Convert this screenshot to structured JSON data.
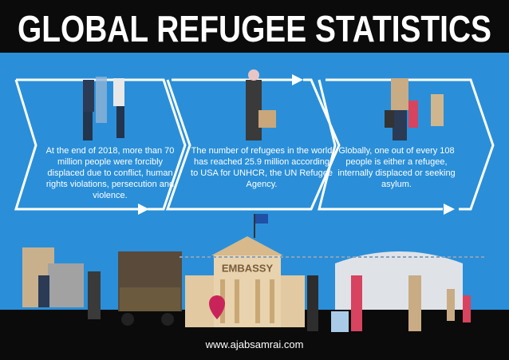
{
  "header": {
    "title": "GLOBAL REFUGEE STATISTICS"
  },
  "panels": [
    {
      "text": "At the end of 2018, more than 70 million people were forcibly displaced due to conflict, human rights violations, persecution and violence."
    },
    {
      "text": "The number of refugees in the world has reached 25.9 million according to USA for UNHCR, the UN Refugee Agency."
    },
    {
      "text": "Globally, one out of every 108 people is either a refugee, internally displaced or seeking asylum."
    }
  ],
  "scene": {
    "building_sign": "EMBASSY"
  },
  "footer": {
    "url": "www.ajabsamrai.com"
  }
}
